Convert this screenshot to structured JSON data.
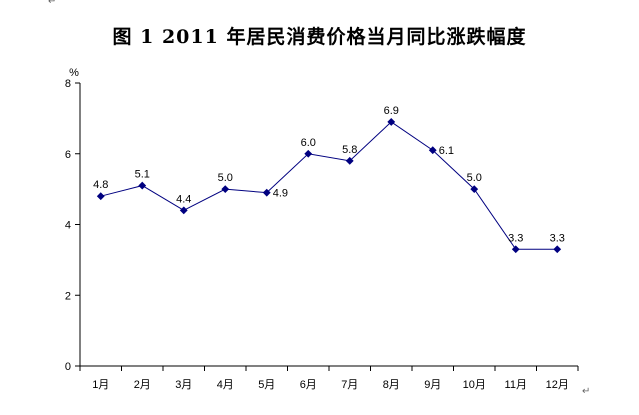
{
  "page": {
    "paragraph_mark_top": "↵",
    "paragraph_mark_bottom": "↵"
  },
  "chart_data": {
    "type": "line",
    "title": "图 1    2011 年居民消费价格当月同比涨跌幅度",
    "ylabel": "%",
    "xlabel": "",
    "categories": [
      "1月",
      "2月",
      "3月",
      "4月",
      "5月",
      "6月",
      "7月",
      "8月",
      "9月",
      "10月",
      "11月",
      "12月"
    ],
    "values": [
      4.8,
      5.1,
      4.4,
      5.0,
      4.9,
      6.0,
      5.8,
      6.9,
      6.1,
      5.0,
      3.3,
      3.3
    ],
    "data_labels": [
      "4.8",
      "5.1",
      "4.4",
      "5.0",
      "4.9",
      "6.0",
      "5.8",
      "6.9",
      "6.1",
      "5.0",
      "3.3",
      "3.3"
    ],
    "ylim": [
      0,
      8
    ],
    "yticks": [
      0,
      2,
      4,
      6,
      8
    ],
    "ytick_labels": [
      "0",
      "2",
      "4",
      "6",
      "8"
    ],
    "grid": false,
    "legend": "none",
    "line_color": "#000080",
    "marker_color": "#000080",
    "axis_color": "#000000"
  }
}
